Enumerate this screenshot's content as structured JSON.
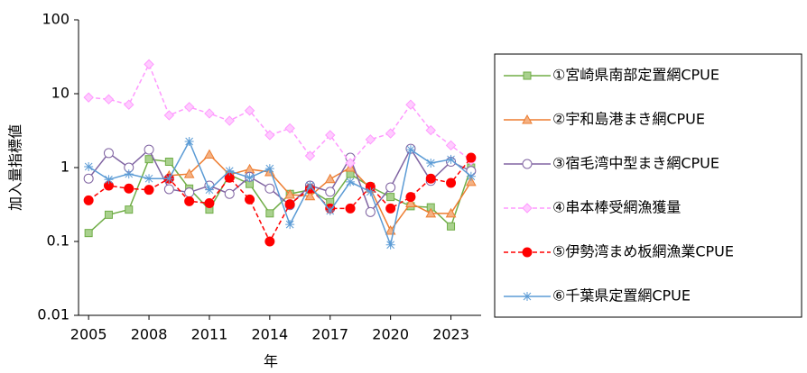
{
  "chart_data": {
    "type": "line",
    "ylabel": "加入量指標値",
    "xlabel": "年",
    "x": [
      2005,
      2006,
      2007,
      2008,
      2009,
      2010,
      2011,
      2012,
      2013,
      2014,
      2015,
      2016,
      2017,
      2018,
      2019,
      2020,
      2021,
      2022,
      2023,
      2024
    ],
    "xlim": [
      2004.5,
      2024.5
    ],
    "xticks": [
      2005,
      2008,
      2011,
      2014,
      2017,
      2020,
      2023
    ],
    "yscale": "log",
    "ylim": [
      0.01,
      100
    ],
    "yticks": [
      0.01,
      0.1,
      1,
      10,
      100
    ],
    "legend": "right",
    "series": [
      {
        "name": "①宮崎県南部定置網CPUE",
        "color": "#70ad47",
        "marker": "square",
        "dashed": false,
        "values": [
          0.13,
          0.23,
          0.27,
          1.3,
          1.2,
          0.52,
          0.27,
          0.8,
          0.6,
          0.24,
          0.44,
          0.5,
          0.34,
          0.82,
          0.55,
          0.4,
          0.3,
          0.29,
          0.16,
          1.0
        ]
      },
      {
        "name": "②宇和島港まき網CPUE",
        "color": "#ed7d31",
        "marker": "triangle",
        "dashed": false,
        "values": [
          null,
          null,
          null,
          null,
          0.78,
          0.82,
          1.5,
          0.8,
          0.95,
          0.87,
          0.43,
          0.41,
          0.7,
          1.0,
          0.52,
          0.14,
          0.33,
          0.24,
          0.24,
          0.64
        ]
      },
      {
        "name": "③宿毛湾中型まき網CPUE",
        "color": "#8064a2",
        "marker": "circle-open",
        "dashed": false,
        "values": [
          0.71,
          1.57,
          1.0,
          1.75,
          0.51,
          0.46,
          0.57,
          0.44,
          0.75,
          0.52,
          0.31,
          0.57,
          0.47,
          1.36,
          0.25,
          0.54,
          1.8,
          0.66,
          1.2,
          0.9
        ]
      },
      {
        "name": "④串本棒受網漁獲量",
        "color": "#ff99ff",
        "marker": "diamond",
        "dashed": true,
        "values": [
          8.9,
          8.4,
          7.1,
          25,
          5.1,
          6.6,
          5.4,
          4.3,
          5.9,
          2.75,
          3.4,
          1.44,
          2.75,
          1.15,
          2.4,
          2.9,
          7.1,
          3.2,
          2.0,
          1.25
        ]
      },
      {
        "name": "⑤伊勢湾まめ板網漁業CPUE",
        "color": "#ff0000",
        "marker": "circle",
        "dashed": true,
        "values": [
          0.36,
          0.57,
          0.52,
          0.5,
          0.71,
          0.35,
          0.33,
          0.73,
          0.37,
          0.1,
          0.32,
          0.52,
          0.28,
          0.28,
          0.55,
          0.28,
          0.4,
          0.71,
          0.62,
          1.36
        ]
      },
      {
        "name": "⑥千葉県定置網CPUE",
        "color": "#5b9bd5",
        "marker": "star",
        "dashed": false,
        "values": [
          1.03,
          0.69,
          0.82,
          0.71,
          0.71,
          2.26,
          0.5,
          0.9,
          0.73,
          0.97,
          0.17,
          0.57,
          0.26,
          0.64,
          0.47,
          0.09,
          1.75,
          1.15,
          1.29,
          0.76
        ]
      }
    ]
  }
}
